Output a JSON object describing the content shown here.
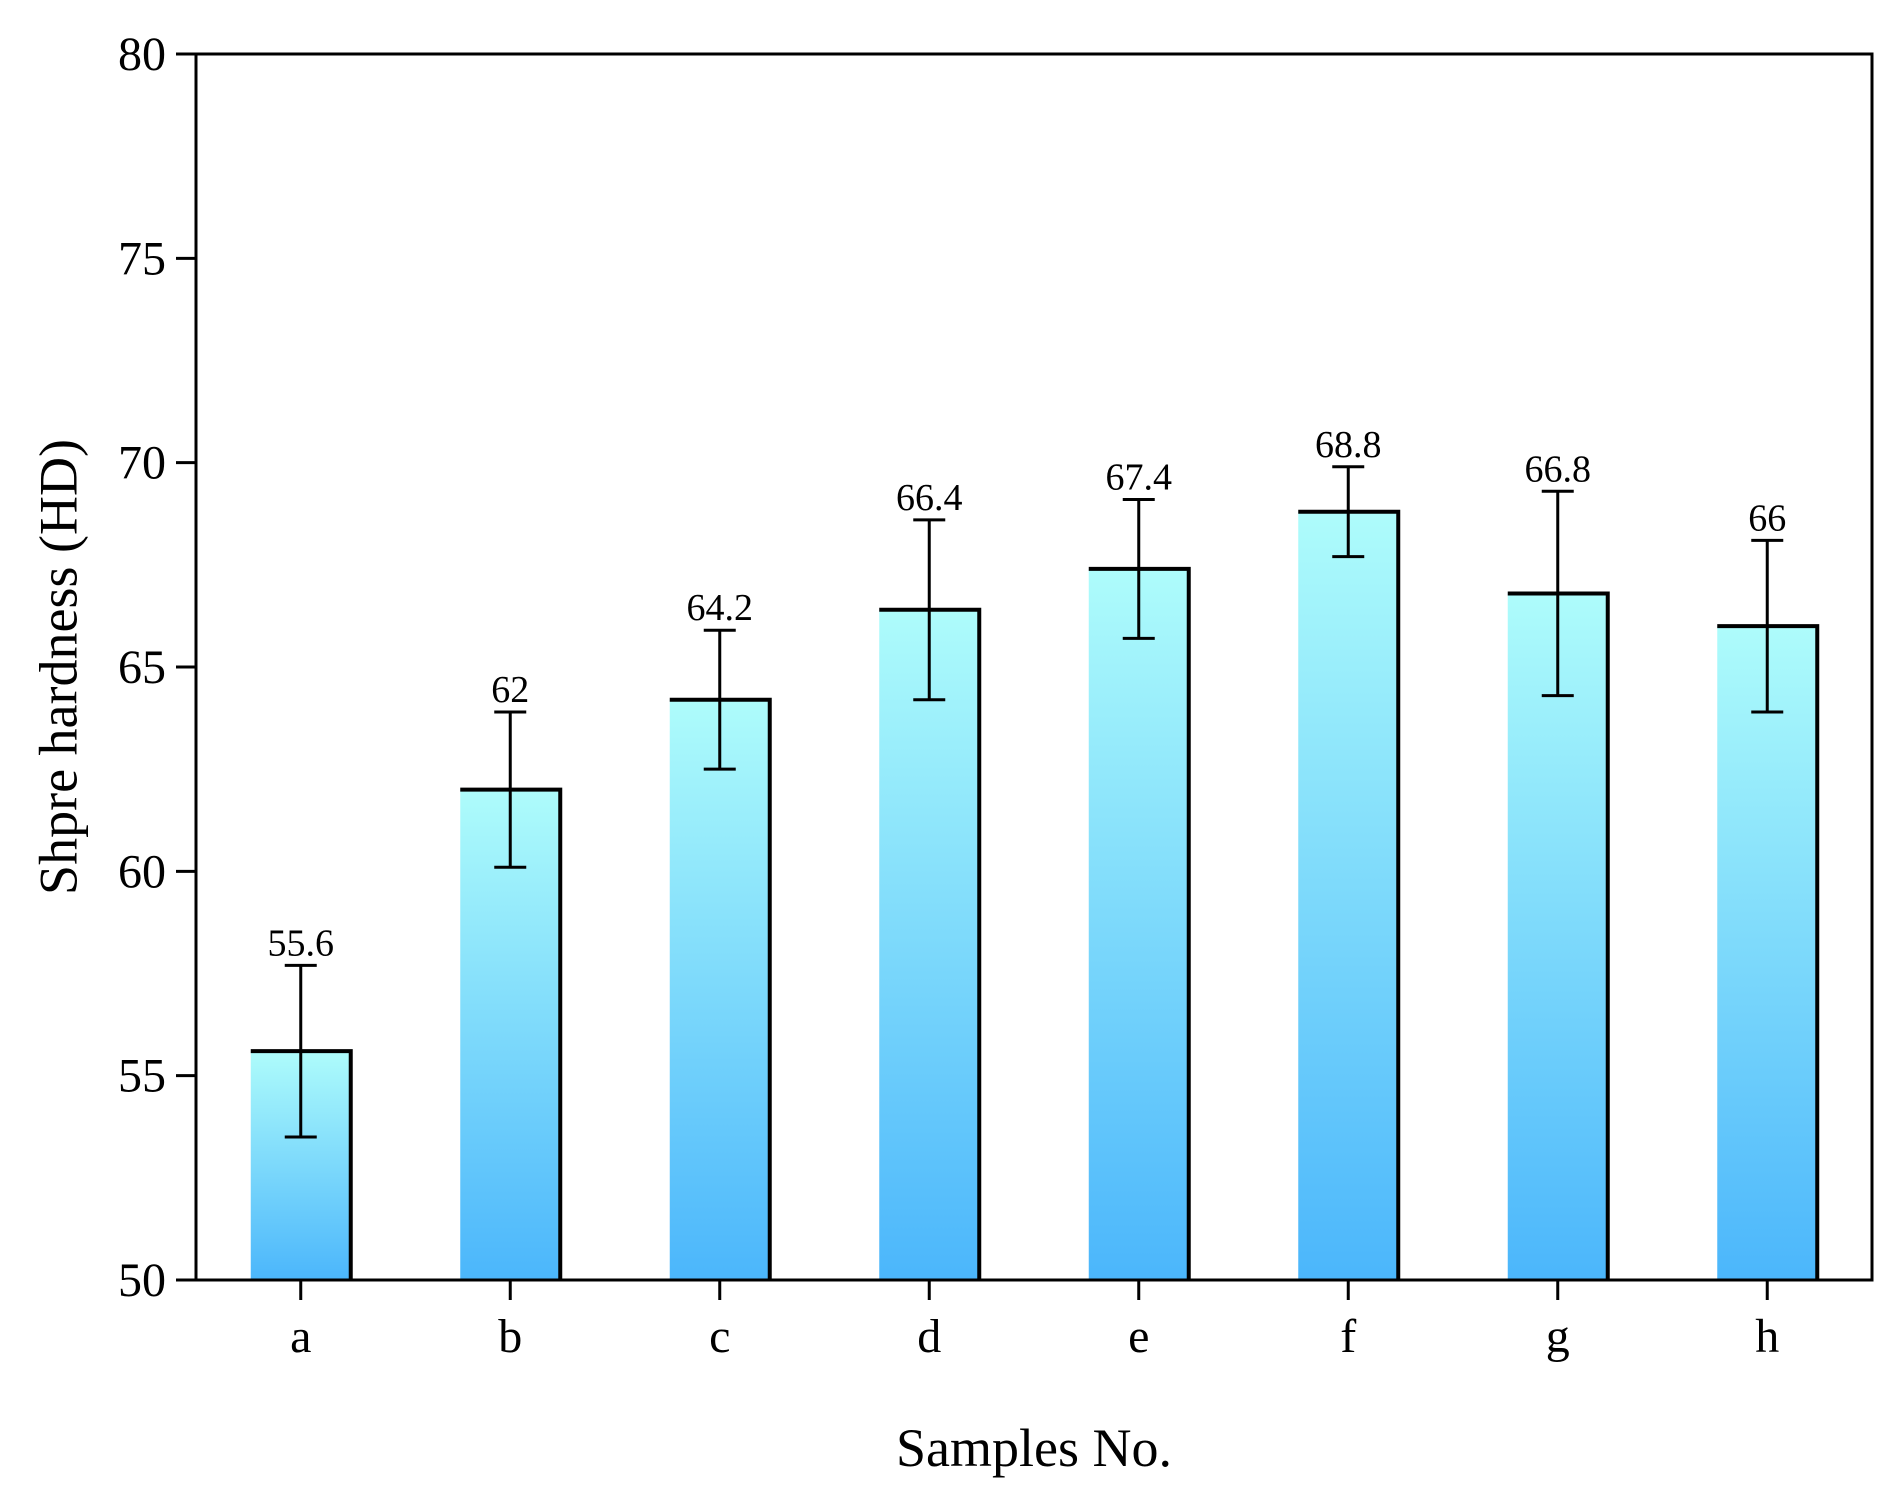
{
  "chart_data": {
    "type": "bar",
    "title": "",
    "xlabel": "Samples No.",
    "ylabel": "Shpre hardness (HD)",
    "categories": [
      "a",
      "b",
      "c",
      "d",
      "e",
      "f",
      "g",
      "h"
    ],
    "values": [
      55.6,
      62,
      64.2,
      66.4,
      67.4,
      68.8,
      66.8,
      66
    ],
    "value_labels": [
      "55.6",
      "62",
      "64.2",
      "66.4",
      "67.4",
      "68.8",
      "66.8",
      "66"
    ],
    "error_low": [
      53.5,
      60.1,
      62.5,
      64.2,
      65.7,
      67.7,
      64.3,
      63.9
    ],
    "error_high": [
      57.7,
      63.9,
      65.9,
      68.6,
      69.1,
      69.9,
      69.3,
      68.1
    ],
    "ylim": [
      50,
      80
    ],
    "yticks": [
      50,
      55,
      60,
      65,
      70,
      75,
      80
    ],
    "ytick_labels": [
      "50",
      "55",
      "60",
      "65",
      "70",
      "75",
      "80"
    ],
    "grid": false,
    "colors": {
      "bar_top": "#aefcfb",
      "bar_bottom": "#4bb6fb",
      "bar_edge": "#000000",
      "axis": "#000000"
    }
  }
}
